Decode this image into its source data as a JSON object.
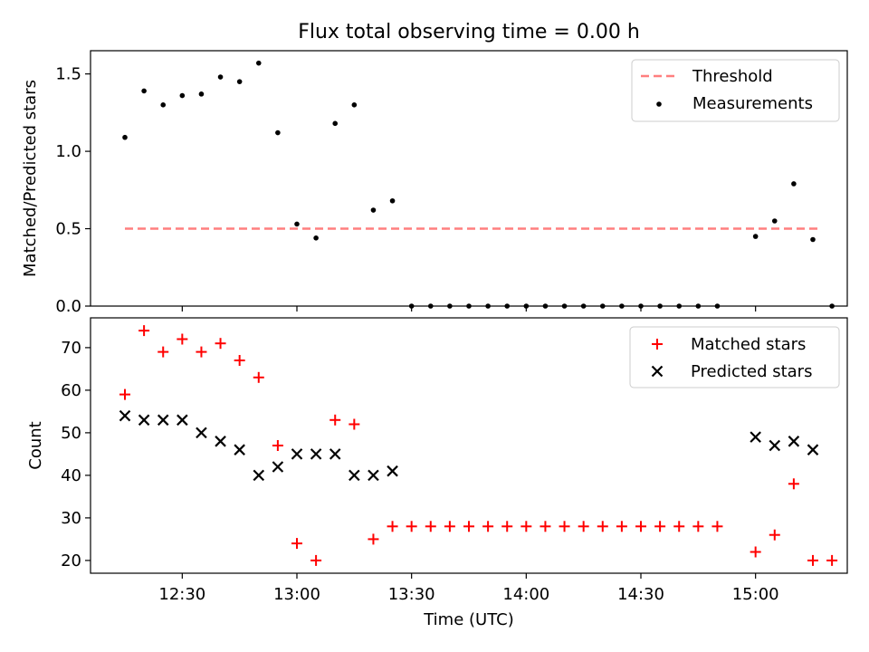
{
  "title": "Flux total observing time = 0.00 h",
  "chart_data": [
    {
      "type": "scatter",
      "panel": "top",
      "title": "Flux total observing time = 0.00 h",
      "xlabel": "",
      "ylabel": "Matched/Predicted stars",
      "ylim": [
        0,
        1.65
      ],
      "yticks": [
        "0.0",
        "0.5",
        "1.0",
        "1.5"
      ],
      "legend": "top-right",
      "threshold": {
        "name": "Threshold",
        "value": 0.5,
        "x_start": "12:15",
        "x_end": "15:17",
        "color": "#ff7f7f"
      },
      "series": [
        {
          "name": "Measurements",
          "color": "#000000",
          "x": [
            "12:15",
            "12:20",
            "12:25",
            "12:30",
            "12:35",
            "12:40",
            "12:45",
            "12:50",
            "12:55",
            "13:00",
            "13:05",
            "13:10",
            "13:15",
            "13:20",
            "13:25",
            "13:30",
            "13:35",
            "13:40",
            "13:45",
            "13:50",
            "13:55",
            "14:00",
            "14:05",
            "14:10",
            "14:15",
            "14:20",
            "14:25",
            "14:30",
            "14:35",
            "14:40",
            "14:45",
            "14:50",
            "15:00",
            "15:05",
            "15:10",
            "15:15",
            "15:20"
          ],
          "y": [
            1.09,
            1.39,
            1.3,
            1.36,
            1.37,
            1.48,
            1.45,
            1.57,
            1.12,
            0.53,
            0.44,
            1.18,
            1.3,
            0.62,
            0.68,
            0,
            0,
            0,
            0,
            0,
            0,
            0,
            0,
            0,
            0,
            0,
            0,
            0,
            0,
            0,
            0,
            0,
            0.45,
            0.55,
            0.79,
            0.43,
            0
          ]
        }
      ]
    },
    {
      "type": "scatter",
      "panel": "bottom",
      "xlabel": "Time (UTC)",
      "ylabel": "Count",
      "ylim": [
        17,
        77
      ],
      "yticks": [
        "20",
        "30",
        "40",
        "50",
        "60",
        "70"
      ],
      "xticks": [
        "12:30",
        "13:00",
        "13:30",
        "14:00",
        "14:30",
        "15:00"
      ],
      "xlim": [
        "12:06",
        "15:24"
      ],
      "legend": "top-right",
      "series": [
        {
          "name": "Matched stars",
          "marker": "plus",
          "color": "#ff0000",
          "x": [
            "12:15",
            "12:20",
            "12:25",
            "12:30",
            "12:35",
            "12:40",
            "12:45",
            "12:50",
            "12:55",
            "13:00",
            "13:05",
            "13:10",
            "13:15",
            "13:20",
            "13:25",
            "13:30",
            "13:35",
            "13:40",
            "13:45",
            "13:50",
            "13:55",
            "14:00",
            "14:05",
            "14:10",
            "14:15",
            "14:20",
            "14:25",
            "14:30",
            "14:35",
            "14:40",
            "14:45",
            "14:50",
            "15:00",
            "15:05",
            "15:10",
            "15:15",
            "15:20"
          ],
          "y": [
            59,
            74,
            69,
            72,
            69,
            71,
            67,
            63,
            47,
            24,
            20,
            53,
            52,
            25,
            28,
            28,
            28,
            28,
            28,
            28,
            28,
            28,
            28,
            28,
            28,
            28,
            28,
            28,
            28,
            28,
            28,
            28,
            22,
            26,
            38,
            20,
            20
          ]
        },
        {
          "name": "Predicted stars",
          "marker": "x",
          "color": "#000000",
          "x": [
            "12:15",
            "12:20",
            "12:25",
            "12:30",
            "12:35",
            "12:40",
            "12:45",
            "12:50",
            "12:55",
            "13:00",
            "13:05",
            "13:10",
            "13:15",
            "13:20",
            "13:25",
            "15:00",
            "15:05",
            "15:10",
            "15:15"
          ],
          "y": [
            54,
            53,
            53,
            53,
            50,
            48,
            46,
            40,
            42,
            45,
            45,
            45,
            40,
            40,
            41,
            49,
            47,
            48,
            46
          ]
        }
      ]
    }
  ]
}
